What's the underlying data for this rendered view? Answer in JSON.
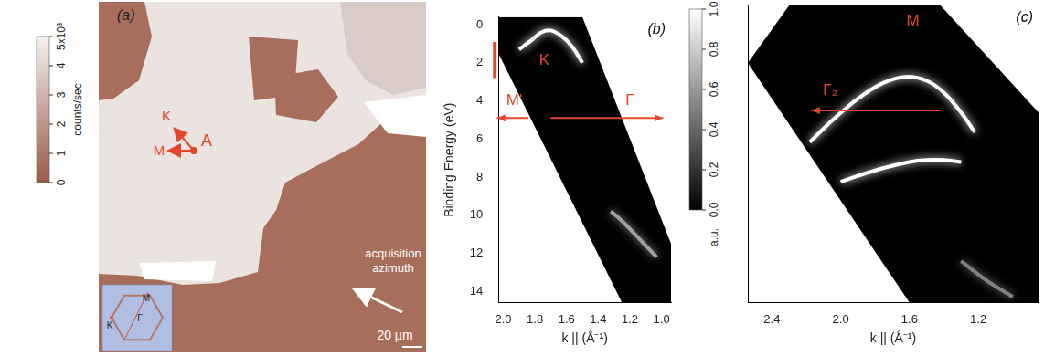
{
  "panel_a": {
    "label": "(a)",
    "colorbar": {
      "title": "counts/sec",
      "ylim": [
        0,
        5
      ],
      "yticks": [
        0,
        1,
        2,
        3,
        4,
        {
          "value": 5,
          "label": "5x10³"
        }
      ]
    },
    "point_label": "A",
    "direction_labels": [
      "K",
      "M"
    ],
    "arrow_text": "acquisition azimuth",
    "scale_bar": "20 µm",
    "inset_labels": [
      "M",
      "K",
      "Γ"
    ]
  },
  "colorbar": {
    "title": "a.u.",
    "ylim": [
      0,
      1
    ],
    "yticks": [
      {
        "value": 0,
        "label": "0.0"
      },
      0.2,
      0.4,
      0.6,
      0.8,
      {
        "value": 1,
        "label": "1.0"
      }
    ]
  },
  "chart_data": [
    {
      "type": "scatter",
      "label": "(b)",
      "x_label": "k || (Å⁻¹)",
      "y_label": "Binding Energy (eV)",
      "xlim": [
        2.03,
        0.94
      ],
      "xticks": [
        {
          "value": 2,
          "label": "2.0"
        },
        1.8,
        1.6,
        1.4,
        1.2,
        {
          "value": 1,
          "label": "1.0"
        }
      ],
      "ylim": [
        14.6,
        -0.4
      ],
      "yticks": [
        0,
        2,
        4,
        6,
        8,
        10,
        12,
        14
      ],
      "grid": false,
      "measured_region": {
        "x": [
          2.03,
          1.5,
          0.94,
          0.94,
          1.25,
          2.03
        ],
        "y": [
          -0.4,
          -0.4,
          11.5,
          14.6,
          14.6,
          1.5
        ]
      },
      "series": [
        {
          "color": "#ffffff",
          "x": [
            1.9,
            1.82,
            1.76,
            1.7,
            1.63,
            1.56,
            1.5
          ],
          "values": [
            1.3,
            0.8,
            0.4,
            0.3,
            0.6,
            1.2,
            2.0
          ]
        },
        {
          "color": "#a0a0a0",
          "x": [
            1.32,
            1.25,
            1.18,
            1.1,
            1.03
          ],
          "values": [
            9.8,
            10.3,
            10.9,
            11.6,
            12.2
          ]
        }
      ],
      "annotations": [
        {
          "text": "K",
          "x": 1.74,
          "y": 1.9
        },
        {
          "text": "M'",
          "x": 1.93,
          "y": 4.0,
          "arrow_from": [
            1.84,
            4.9
          ],
          "arrow_to": [
            2.04,
            4.9
          ]
        },
        {
          "text": "Γ",
          "x": 1.2,
          "y": 4.0,
          "arrow_from": [
            1.7,
            4.9
          ],
          "arrow_to": [
            0.99,
            4.9
          ]
        }
      ],
      "energy_marker": [
        0.9,
        2.8
      ]
    },
    {
      "type": "scatter",
      "label": "(c)",
      "x_label": "k || (Å⁻¹)",
      "xlim": [
        2.54,
        0.85
      ],
      "xticks": [
        2.4,
        {
          "value": 2,
          "label": "2.0"
        },
        1.6,
        1.2
      ],
      "ylim": [
        14.6,
        -0.4
      ],
      "tick_labels": "x",
      "grid": false,
      "measured_region": {
        "x": [
          2.3,
          1.42,
          0.85,
          0.85,
          1.6,
          2.54
        ],
        "y": [
          -0.4,
          -0.4,
          5,
          14.6,
          14.6,
          2.5
        ]
      },
      "series": [
        {
          "color": "#ffffff",
          "x": [
            2.18,
            2.05,
            1.9,
            1.75,
            1.62,
            1.5,
            1.4,
            1.3,
            1.22
          ],
          "values": [
            6.5,
            5.4,
            4.3,
            3.5,
            3.2,
            3.4,
            4.0,
            5.0,
            6.0
          ]
        },
        {
          "color": "#ffffff",
          "x": [
            2.0,
            1.9,
            1.75,
            1.6,
            1.5,
            1.4,
            1.3
          ],
          "values": [
            8.5,
            8.2,
            7.8,
            7.5,
            7.4,
            7.4,
            7.5
          ]
        },
        {
          "color": "#808080",
          "x": [
            1.3,
            1.15,
            1.0
          ],
          "values": [
            12.5,
            13.5,
            14.3
          ]
        }
      ],
      "annotations": [
        {
          "text": "M",
          "x": 1.58,
          "y": 0.4
        },
        {
          "text": "Γ₂",
          "x": 2.06,
          "y": 3.9,
          "arrow_from": [
            1.42,
            4.9
          ],
          "arrow_to": [
            2.17,
            4.9
          ]
        }
      ]
    }
  ]
}
